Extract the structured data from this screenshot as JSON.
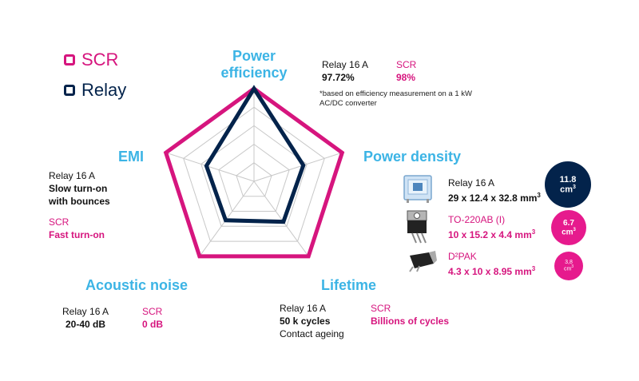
{
  "colors": {
    "scr": "#d6157e",
    "relay": "#03234b",
    "axis": "#3cb4e5",
    "grid": "#c8c8c8"
  },
  "legend": {
    "scr": "SCR",
    "relay": "Relay"
  },
  "chart_data": {
    "type": "radar",
    "axes": [
      "Power efficiency",
      "Power density",
      "Lifetime",
      "Acoustic noise",
      "EMI"
    ],
    "range": [
      0,
      5
    ],
    "series": [
      {
        "name": "SCR",
        "values": [
          5,
          5,
          5,
          5,
          5
        ]
      },
      {
        "name": "Relay",
        "values": [
          5,
          2.8,
          2.7,
          2.6,
          2.7
        ]
      }
    ]
  },
  "axis_labels": {
    "power_efficiency_l1": "Power",
    "power_efficiency_l2": "efficiency",
    "power_density": "Power density",
    "lifetime": "Lifetime",
    "acoustic_noise": "Acoustic noise",
    "emi": "EMI"
  },
  "efficiency": {
    "relay_name": "Relay 16 A",
    "relay_value": "97.72%",
    "scr_name": "SCR",
    "scr_value": "98%",
    "note_l1": "*based on efficiency measurement on a 1 kW",
    "note_l2": "AC/DC converter"
  },
  "emi": {
    "relay_name": "Relay 16 A",
    "relay_l1": "Slow turn-on",
    "relay_l2": "with bounces",
    "scr_name": "SCR",
    "scr_value": "Fast turn-on"
  },
  "density": {
    "relay_name": "Relay 16 A",
    "relay_dims": "29 x 12.4 x 32.8 mm",
    "relay_sup": "3",
    "to220_name": "TO-220AB (I)",
    "to220_dims": "10 x 15.2 x 4.4 mm",
    "to220_sup": "3",
    "d2pak_name": "D²PAK",
    "d2pak_dims": "4.3 x 10 x 8.95 mm",
    "d2pak_sup": "3",
    "bubble_relay": "11.8",
    "bubble_relay_unit": "cm",
    "bubble_to220": "6.7",
    "bubble_to220_unit": "cm",
    "bubble_d2pak": "3,8",
    "bubble_d2pak_unit": "cm",
    "bubble_sup": "3"
  },
  "noise": {
    "relay_name": "Relay 16 A",
    "relay_value": "20-40 dB",
    "scr_name": "SCR",
    "scr_value": "0 dB"
  },
  "lifetime": {
    "relay_name": "Relay 16 A",
    "relay_value": "50 k cycles",
    "relay_note": "Contact ageing",
    "scr_name": "SCR",
    "scr_value": "Billions of cycles"
  }
}
